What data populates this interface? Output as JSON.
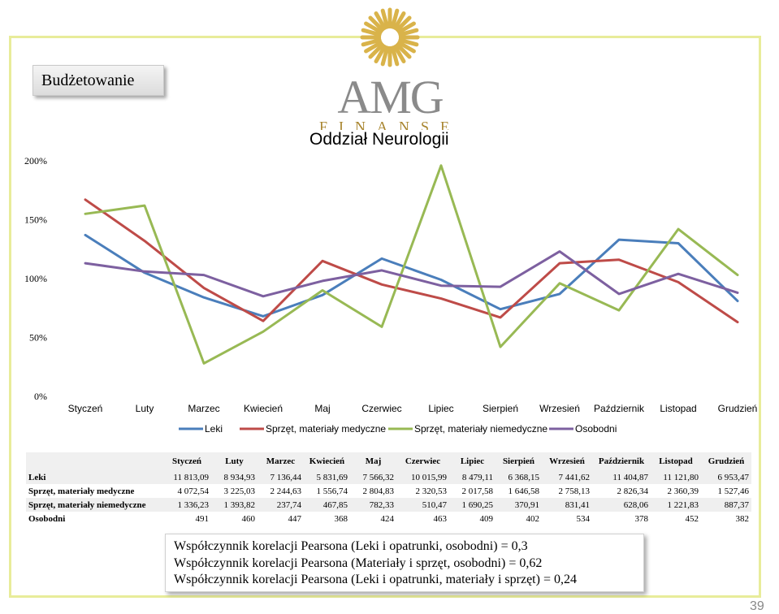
{
  "slide": {
    "title": "Budżetowanie",
    "page_number": "39",
    "logo": {
      "text": "AMG",
      "subtext": "FINANSE"
    }
  },
  "chart_data": {
    "type": "line",
    "title": "Oddział Neurologii",
    "categories": [
      "Styczeń",
      "Luty",
      "Marzec",
      "Kwiecień",
      "Maj",
      "Czerwiec",
      "Lipiec",
      "Sierpień",
      "Wrzesień",
      "Październik",
      "Listopad",
      "Grudzień"
    ],
    "yticks": [
      "0%",
      "50%",
      "100%",
      "150%",
      "200%"
    ],
    "ylim": [
      0,
      200
    ],
    "legend_position": "bottom",
    "grid": false,
    "series": [
      {
        "name": "Leki",
        "color": "#4a7ebb",
        "values": [
          137,
          105,
          84,
          68,
          86,
          117,
          99,
          74,
          87,
          133,
          130,
          81
        ]
      },
      {
        "name": "Sprzęt, materiały medyczne",
        "color": "#be4b48",
        "values": [
          167,
          132,
          92,
          64,
          115,
          95,
          83,
          67,
          113,
          116,
          97,
          63
        ]
      },
      {
        "name": "Sprzęt, materiały niemedyczne",
        "color": "#98b954",
        "values": [
          155,
          162,
          28,
          55,
          90,
          59,
          196,
          42,
          96,
          73,
          142,
          103
        ]
      },
      {
        "name": "Osobodni",
        "color": "#7d60a0",
        "values": [
          113,
          106,
          103,
          85,
          98,
          107,
          94,
          93,
          123,
          87,
          104,
          88
        ]
      }
    ]
  },
  "table": {
    "headers": [
      "Styczeń",
      "Luty",
      "Marzec",
      "Kwiecień",
      "Maj",
      "Czerwiec",
      "Lipiec",
      "Sierpień",
      "Wrzesień",
      "Październik",
      "Listopad",
      "Grudzień"
    ],
    "rows": [
      {
        "label": "Leki",
        "values": [
          "11 813,09",
          "8 934,93",
          "7 136,44",
          "5 831,69",
          "7 566,32",
          "10 015,99",
          "8 479,11",
          "6 368,15",
          "7 441,62",
          "11 404,87",
          "11 121,80",
          "6 953,47"
        ]
      },
      {
        "label": "Sprzęt, materiały medyczne",
        "values": [
          "4 072,54",
          "3 225,03",
          "2 244,63",
          "1 556,74",
          "2 804,83",
          "2 320,53",
          "2 017,58",
          "1 646,58",
          "2 758,13",
          "2 826,34",
          "2 360,39",
          "1 527,46"
        ]
      },
      {
        "label": "Sprzęt, materiały niemedyczne",
        "values": [
          "1 336,23",
          "1 393,82",
          "237,74",
          "467,85",
          "782,33",
          "510,47",
          "1 690,25",
          "370,91",
          "831,41",
          "628,06",
          "1 221,83",
          "887,37"
        ]
      },
      {
        "label": "Osobodni",
        "values": [
          "491",
          "460",
          "447",
          "368",
          "424",
          "463",
          "409",
          "402",
          "534",
          "378",
          "452",
          "382"
        ]
      }
    ]
  },
  "correlations": [
    "Współczynnik korelacji Pearsona (Leki i opatrunki, osobodni) = 0,3",
    "Współczynnik korelacji Pearsona (Materiały i sprzęt, osobodni) = 0,62",
    "Współczynnik korelacji Pearsona (Leki i opatrunki, materiały i sprzęt) = 0,24"
  ]
}
